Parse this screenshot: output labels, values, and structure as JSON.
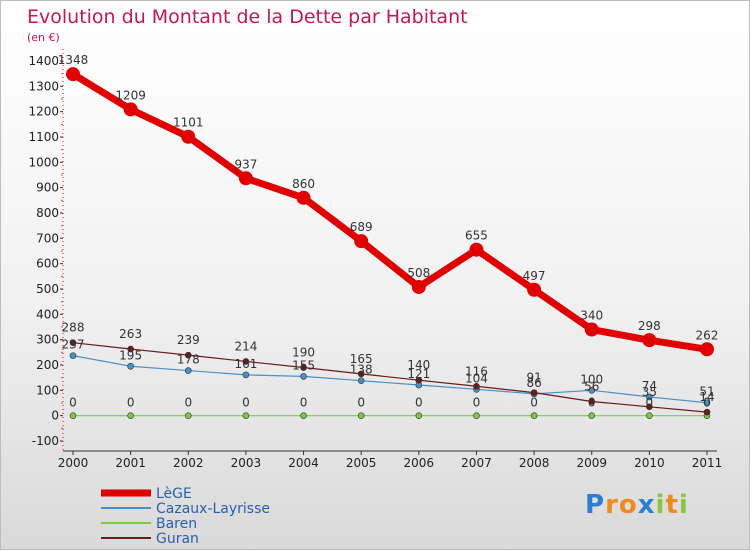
{
  "chart_data": {
    "type": "line",
    "title": "Evolution du Montant de la Dette par Habitant",
    "unit_label": "(en €)",
    "xlabel": "",
    "ylabel": "",
    "ylim": [
      -100,
      1400
    ],
    "y_ticks": [
      -100,
      0,
      100,
      200,
      300,
      400,
      500,
      600,
      700,
      800,
      900,
      1000,
      1100,
      1200,
      1300,
      1400
    ],
    "categories": [
      "2000",
      "2001",
      "2002",
      "2003",
      "2004",
      "2005",
      "2006",
      "2007",
      "2008",
      "2009",
      "2010",
      "2011"
    ],
    "legend_position": "bottom-left",
    "series": [
      {
        "name": "LèGE",
        "color": "#e00000",
        "values": [
          1348,
          1209,
          1101,
          937,
          860,
          689,
          508,
          655,
          497,
          340,
          298,
          262
        ],
        "labels": [
          "1348",
          "1209",
          "1101",
          "937",
          "860",
          "689",
          "508",
          "655",
          "497",
          "340",
          "298",
          "262"
        ]
      },
      {
        "name": "Cazaux-Layrisse",
        "color": "#4a90c8",
        "values": [
          237,
          195,
          178,
          161,
          155,
          138,
          121,
          104,
          86,
          100,
          74,
          51
        ],
        "labels": [
          "237",
          "195",
          "178",
          "161",
          "155",
          "138",
          "121",
          "104",
          "86",
          "100",
          "74",
          "51"
        ]
      },
      {
        "name": "Baren",
        "color": "#77cc44",
        "values": [
          0,
          0,
          0,
          0,
          0,
          0,
          0,
          0,
          0,
          0,
          0,
          0
        ],
        "labels": [
          "0",
          "0",
          "0",
          "0",
          "0",
          "0",
          "0",
          "0",
          "0",
          "0",
          "0",
          "0"
        ]
      },
      {
        "name": "Guran",
        "color": "#6b1a1a",
        "values": [
          288,
          263,
          239,
          214,
          190,
          165,
          140,
          116,
          91,
          56,
          35,
          14
        ],
        "labels": [
          "288",
          "263",
          "239",
          "214",
          "190",
          "165",
          "140",
          "116",
          "91",
          "56",
          "35",
          "14"
        ]
      }
    ]
  },
  "logo": {
    "letters": [
      "P",
      "r",
      "o",
      "x",
      "i",
      "t",
      "i"
    ],
    "colors": [
      "#2a7fd4",
      "#f08a1c",
      "#f08a1c",
      "#2a7fd4",
      "#88c540",
      "#f08a1c",
      "#88c540"
    ]
  }
}
